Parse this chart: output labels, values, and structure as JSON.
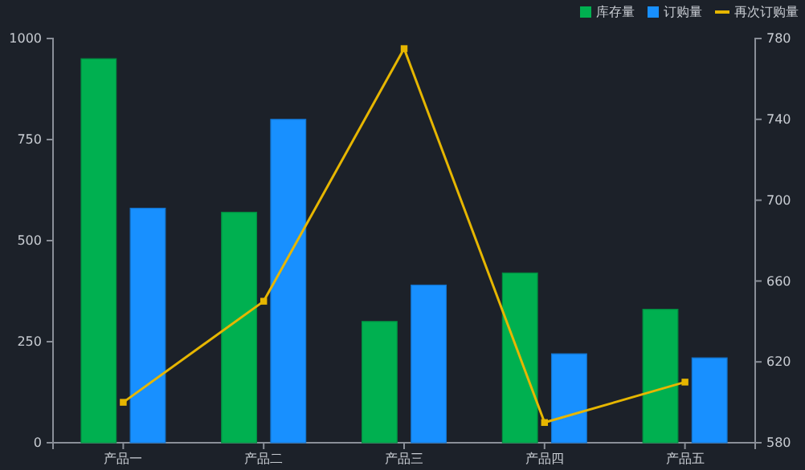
{
  "chart_data": {
    "type": "bar",
    "categories": [
      "产品一",
      "产品二",
      "产品三",
      "产品四",
      "产品五"
    ],
    "series": [
      {
        "name": "库存量",
        "color": "#00b050",
        "values": [
          950,
          570,
          300,
          420,
          330
        ]
      },
      {
        "name": "订购量",
        "color": "#1890ff",
        "values": [
          580,
          800,
          390,
          220,
          210
        ]
      },
      {
        "name": "再次订购量",
        "type": "line",
        "axis": "y2",
        "color": "#e6b600",
        "values": [
          600,
          650,
          775,
          590,
          610
        ],
        "marker": "square"
      }
    ],
    "ylim": [
      0,
      1000
    ],
    "yticks": [
      0,
      250,
      500,
      750,
      1000
    ],
    "y2lim": [
      580,
      780
    ],
    "y2ticks": [
      580,
      620,
      660,
      700,
      740,
      780
    ],
    "grid": false,
    "legend": "top right"
  }
}
